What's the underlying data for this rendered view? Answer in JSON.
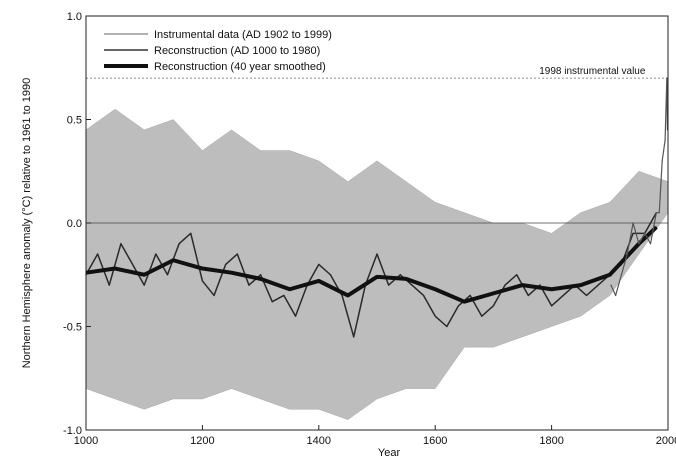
{
  "chart_data": {
    "type": "line",
    "title": "",
    "xlabel": "Year",
    "ylabel": "Northern Hemisphere anomaly (°C) relative to 1961 to 1990",
    "xlim": [
      1000,
      2000
    ],
    "ylim": [
      -1.0,
      1.0
    ],
    "xticks": [
      1000,
      1200,
      1400,
      1600,
      1800,
      2000
    ],
    "yticks": [
      1.0,
      0.5,
      0.0,
      -0.5,
      -1.0
    ],
    "ytick_labels": [
      "1.0",
      "0.5",
      "0.0",
      "-0.5",
      "-1.0"
    ],
    "grid": false,
    "legend_position": "top-left",
    "legend": [
      {
        "label": "Instrumental data (AD 1902 to 1999)",
        "style": "thin"
      },
      {
        "label": "Reconstruction (AD 1000 to 1980)",
        "style": "medium"
      },
      {
        "label": "Reconstruction (40 year smoothed)",
        "style": "thick"
      }
    ],
    "annotations": [
      {
        "text": "1998 instrumental value",
        "y": 0.7
      }
    ],
    "reference_line_y": 0.0,
    "series": [
      {
        "name": "Instrumental data (AD 1902 to 1999)",
        "x": [
          1902,
          1910,
          1920,
          1930,
          1940,
          1950,
          1960,
          1970,
          1980,
          1985,
          1990,
          1995,
          1998,
          1999
        ],
        "values": [
          -0.3,
          -0.35,
          -0.25,
          -0.15,
          0.0,
          -0.1,
          -0.05,
          -0.1,
          0.05,
          0.05,
          0.3,
          0.4,
          0.7,
          0.45
        ]
      },
      {
        "name": "Reconstruction (AD 1000 to 1980)",
        "x": [
          1000,
          1020,
          1040,
          1060,
          1080,
          1100,
          1120,
          1140,
          1160,
          1180,
          1200,
          1220,
          1240,
          1260,
          1280,
          1300,
          1320,
          1340,
          1360,
          1380,
          1400,
          1420,
          1440,
          1460,
          1480,
          1500,
          1520,
          1540,
          1560,
          1580,
          1600,
          1620,
          1640,
          1660,
          1680,
          1700,
          1720,
          1740,
          1760,
          1780,
          1800,
          1820,
          1840,
          1860,
          1880,
          1900,
          1920,
          1940,
          1960,
          1980
        ],
        "values": [
          -0.25,
          -0.15,
          -0.3,
          -0.1,
          -0.2,
          -0.3,
          -0.15,
          -0.25,
          -0.1,
          -0.05,
          -0.28,
          -0.35,
          -0.2,
          -0.15,
          -0.3,
          -0.25,
          -0.38,
          -0.35,
          -0.45,
          -0.3,
          -0.2,
          -0.25,
          -0.35,
          -0.55,
          -0.3,
          -0.15,
          -0.3,
          -0.25,
          -0.3,
          -0.35,
          -0.45,
          -0.5,
          -0.4,
          -0.35,
          -0.45,
          -0.4,
          -0.3,
          -0.25,
          -0.35,
          -0.3,
          -0.4,
          -0.35,
          -0.3,
          -0.35,
          -0.3,
          -0.25,
          -0.2,
          -0.05,
          -0.05,
          0.05
        ]
      },
      {
        "name": "Reconstruction (40 year smoothed)",
        "x": [
          1000,
          1050,
          1100,
          1150,
          1200,
          1250,
          1300,
          1350,
          1400,
          1450,
          1500,
          1550,
          1600,
          1650,
          1700,
          1750,
          1800,
          1850,
          1900,
          1950,
          1980
        ],
        "values": [
          -0.24,
          -0.22,
          -0.25,
          -0.18,
          -0.22,
          -0.24,
          -0.27,
          -0.32,
          -0.28,
          -0.35,
          -0.26,
          -0.27,
          -0.32,
          -0.38,
          -0.34,
          -0.3,
          -0.32,
          -0.3,
          -0.25,
          -0.1,
          -0.02
        ]
      }
    ],
    "uncertainty_band": {
      "x": [
        1000,
        1050,
        1100,
        1150,
        1200,
        1250,
        1300,
        1350,
        1400,
        1450,
        1500,
        1550,
        1600,
        1650,
        1700,
        1750,
        1800,
        1850,
        1900,
        1950,
        2000
      ],
      "upper": [
        0.45,
        0.55,
        0.45,
        0.5,
        0.35,
        0.45,
        0.35,
        0.35,
        0.3,
        0.2,
        0.3,
        0.2,
        0.1,
        0.05,
        0.0,
        0.0,
        -0.05,
        0.05,
        0.1,
        0.25,
        0.2
      ],
      "lower": [
        -0.8,
        -0.85,
        -0.9,
        -0.85,
        -0.85,
        -0.8,
        -0.85,
        -0.9,
        -0.9,
        -0.95,
        -0.85,
        -0.8,
        -0.8,
        -0.6,
        -0.6,
        -0.55,
        -0.5,
        -0.45,
        -0.35,
        -0.15,
        0.05
      ]
    }
  }
}
